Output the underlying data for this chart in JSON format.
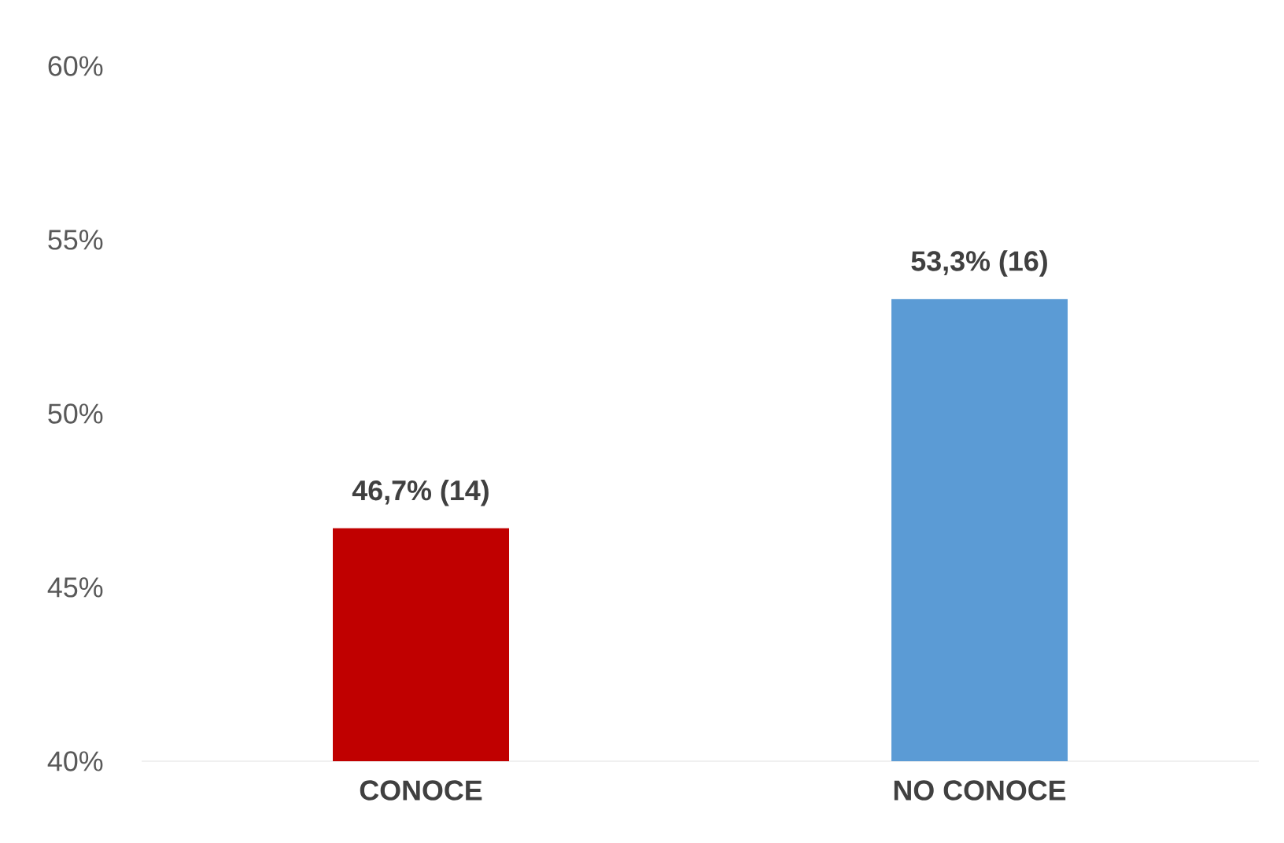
{
  "chart_data": {
    "type": "bar",
    "categories": [
      "CONOCE",
      "NO CONOCE"
    ],
    "values": [
      46.7,
      53.3
    ],
    "colors": [
      "#c00000",
      "#5b9bd5"
    ],
    "value_labels": [
      "46,7% (14)",
      "53,3% (16)"
    ],
    "ylim": [
      40,
      60
    ],
    "yticks": [
      {
        "value": 40,
        "label": "40%"
      },
      {
        "value": 45,
        "label": "45%"
      },
      {
        "value": 50,
        "label": "50%"
      },
      {
        "value": 55,
        "label": "55%"
      },
      {
        "value": 60,
        "label": "60%"
      }
    ],
    "grid": false
  }
}
